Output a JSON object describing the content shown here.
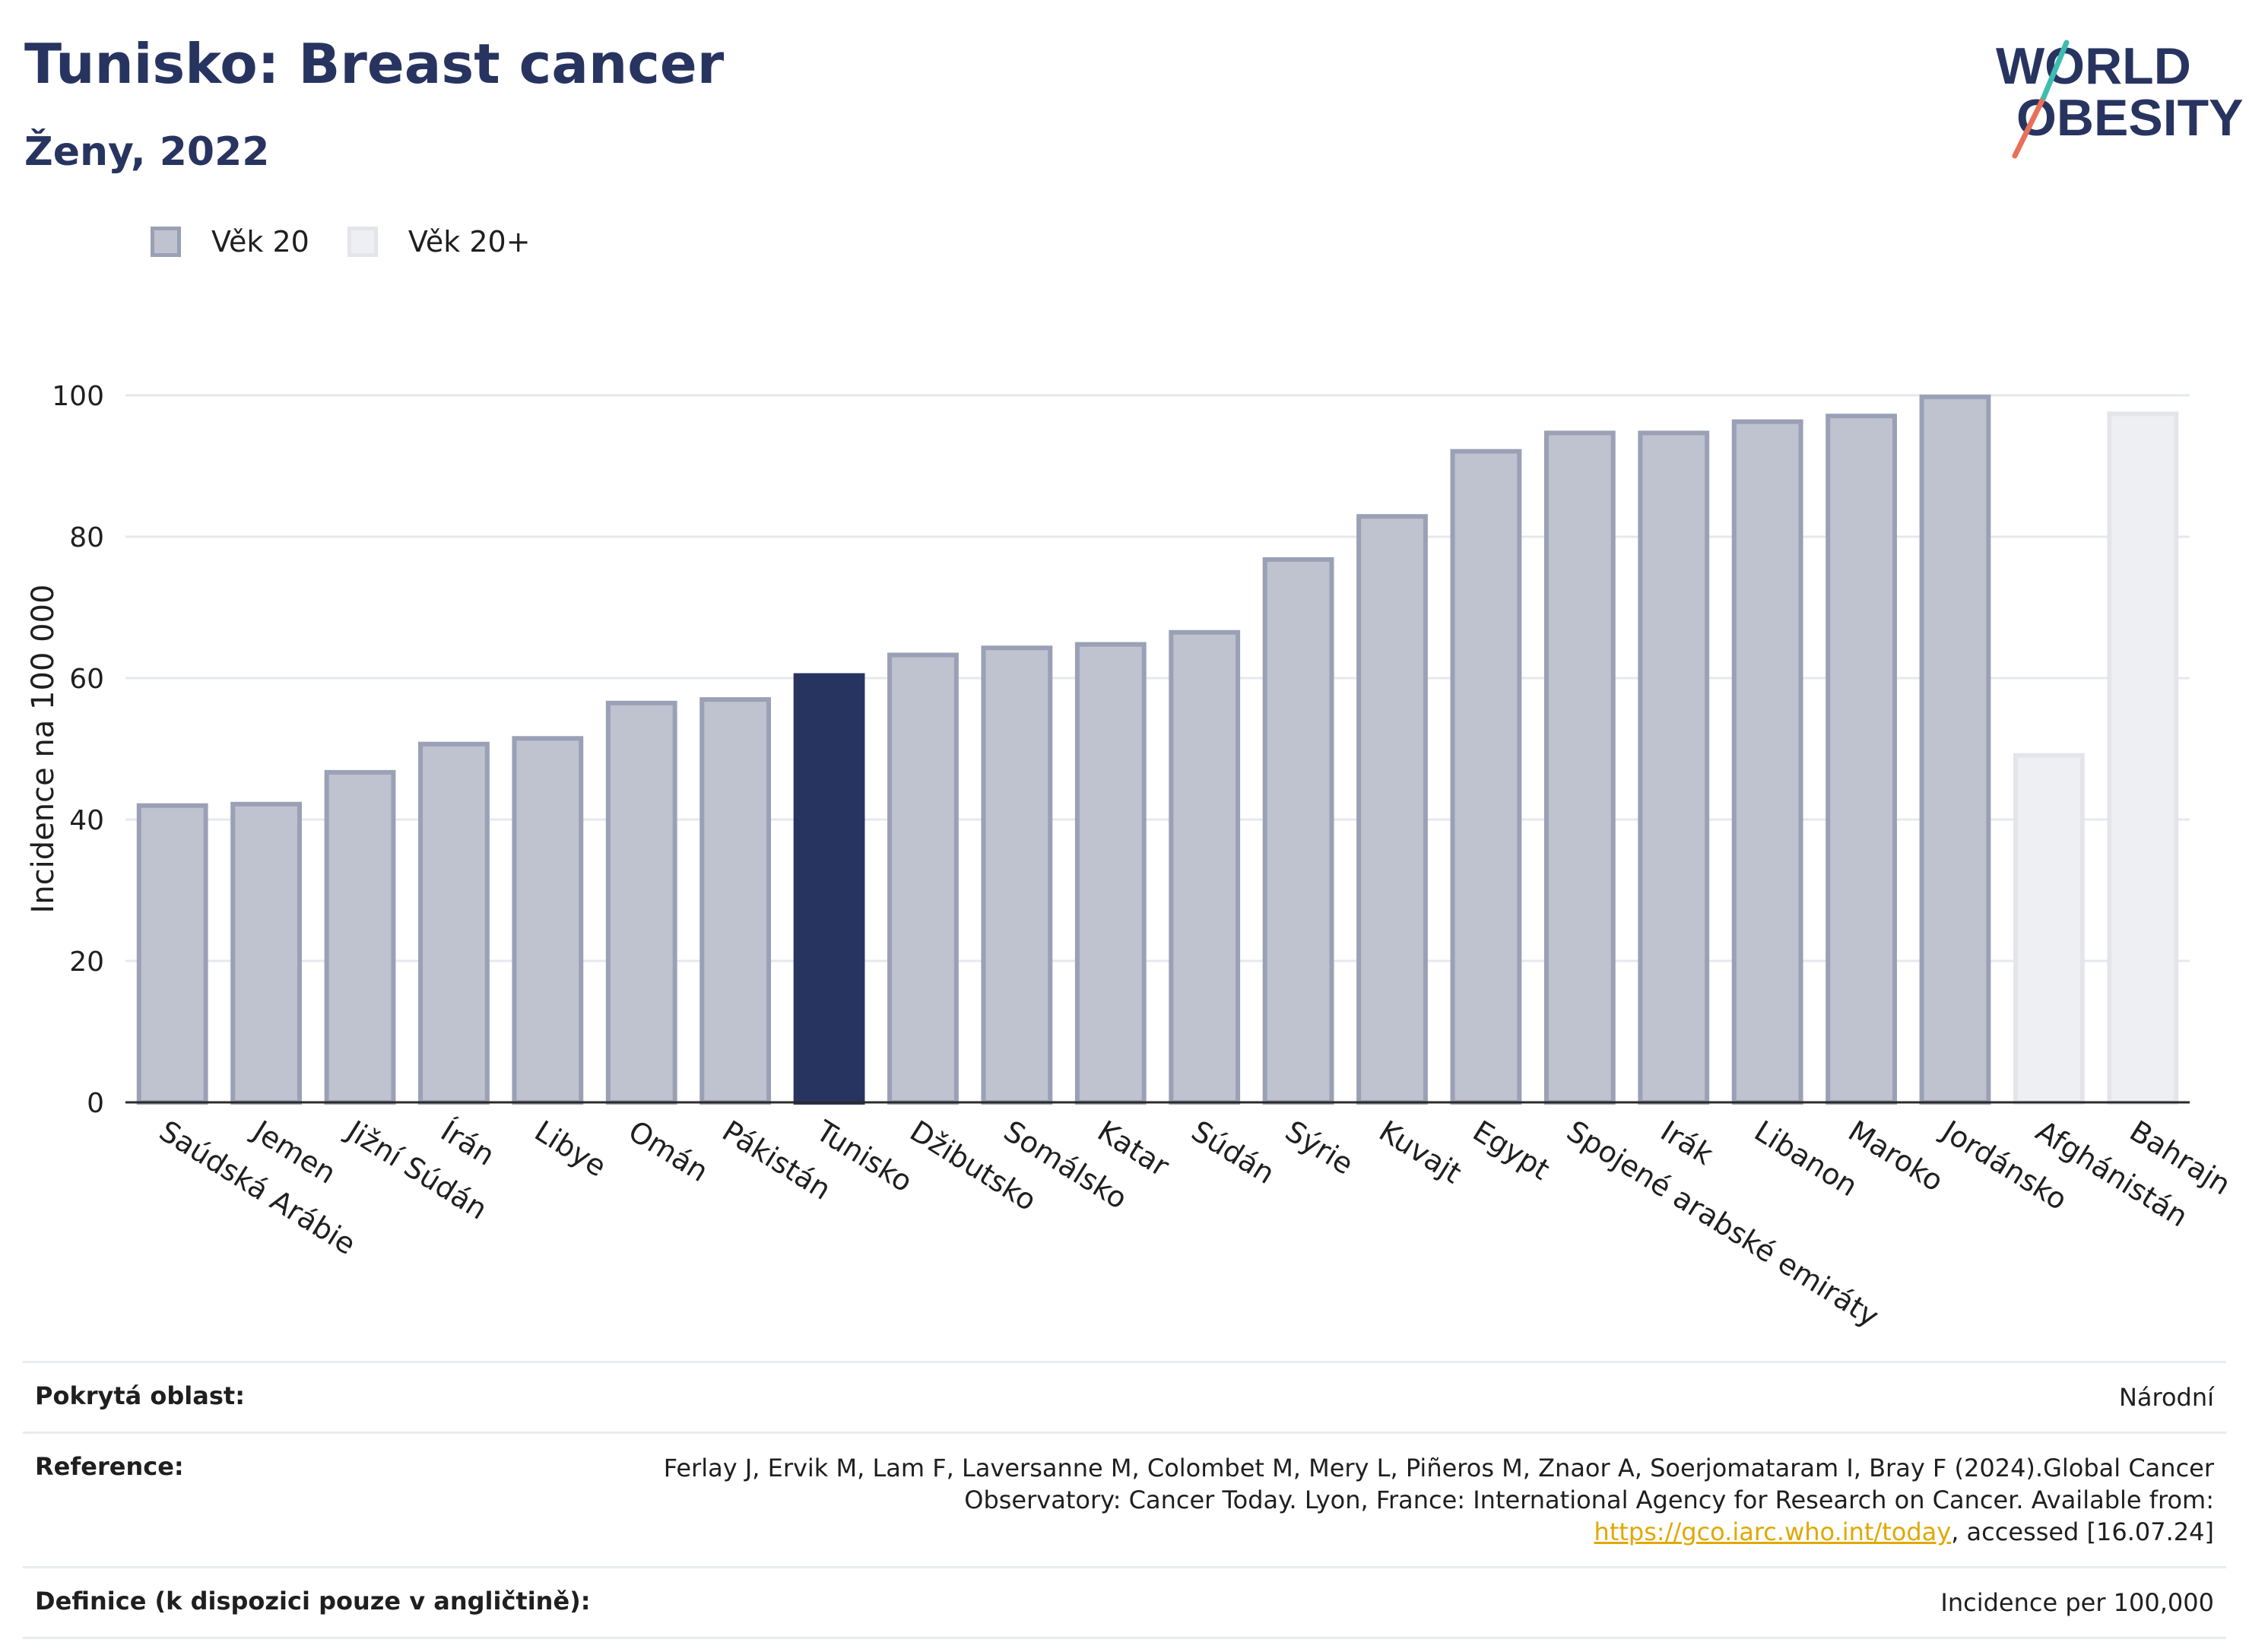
{
  "header": {
    "title": "Tunisko: Breast cancer",
    "subtitle": "Ženy, 2022"
  },
  "logo": {
    "line1": "WORLD",
    "line2": "OBESITY"
  },
  "legend": [
    {
      "label": "Věk 20",
      "color": "#bfc2cf"
    },
    {
      "label": "Věk 20+",
      "color": "#eeeff3"
    }
  ],
  "chart_data": {
    "type": "bar",
    "ylabel": "Incidence na 100 000",
    "ylim": [
      0,
      100
    ],
    "yticks": [
      0,
      20,
      40,
      60,
      80,
      100
    ],
    "grid": true,
    "categories": [
      "Saúdská Arábie",
      "Jemen",
      "Jižní Súdán",
      "Írán",
      "Libye",
      "Omán",
      "Pákistán",
      "Tunisko",
      "Džibutsko",
      "Somálsko",
      "Katar",
      "Súdán",
      "Sýrie",
      "Kuvajt",
      "Egypt",
      "Spojené arabské emiráty",
      "Irák",
      "Libanon",
      "Maroko",
      "Jordánsko",
      "Afghánistán",
      "Bahrajn"
    ],
    "values": [
      42.3,
      42.5,
      47.0,
      51.0,
      51.8,
      56.8,
      57.3,
      60.7,
      63.6,
      64.6,
      65.1,
      66.8,
      77.1,
      83.2,
      92.4,
      95.0,
      95.0,
      96.6,
      97.4,
      100.1,
      49.4,
      97.7
    ],
    "series_group": [
      "Věk 20",
      "Věk 20",
      "Věk 20",
      "Věk 20",
      "Věk 20",
      "Věk 20",
      "Věk 20",
      "Věk 20",
      "Věk 20",
      "Věk 20",
      "Věk 20",
      "Věk 20",
      "Věk 20",
      "Věk 20",
      "Věk 20",
      "Věk 20",
      "Věk 20",
      "Věk 20",
      "Věk 20",
      "Věk 20",
      "Věk 20+",
      "Věk 20+"
    ],
    "highlight": "Tunisko",
    "colors": {
      "default_fill": "#bfc2cf",
      "default_stroke": "#9aa0b5",
      "highlight_fill": "#283460",
      "age20plus_fill": "#eeeff3",
      "age20plus_stroke": "#e3e5eb"
    }
  },
  "footer": {
    "coverage_label": "Pokrytá oblast:",
    "coverage_value": "Národní",
    "reference_label": "Reference:",
    "reference_text_1": "Ferlay J, Ervik M, Lam F, Laversanne M, Colombet M, Mery L, Piñeros M, Znaor A, Soerjomataram I, Bray F (2024).Global Cancer Observatory: Cancer Today. Lyon, France: International Agency for Research on Cancer. Available from: ",
    "reference_link": "https://gco.iarc.who.int/today",
    "reference_text_2": ", accessed [16.07.24]",
    "definition_label": "Definice (k dispozici pouze v angličtině):",
    "definition_value": "Incidence per 100,000"
  }
}
